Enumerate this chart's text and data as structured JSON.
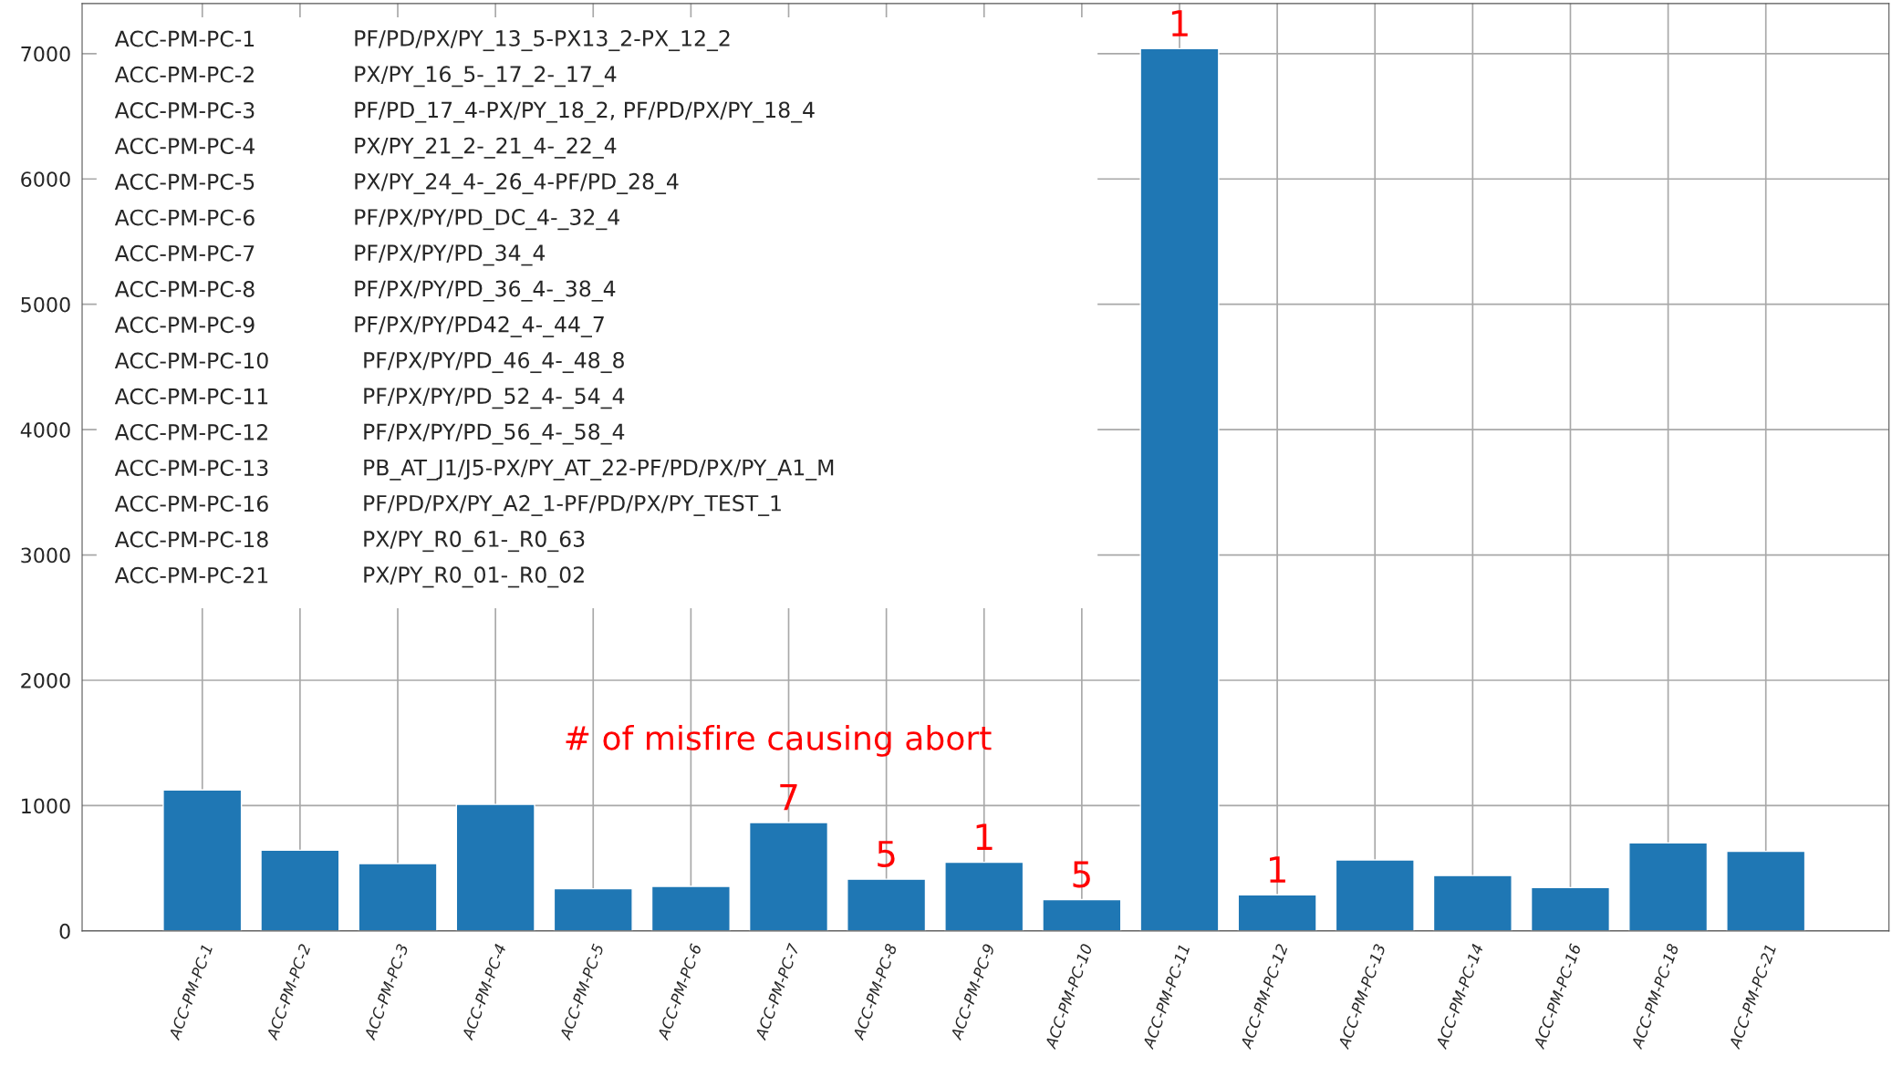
{
  "chart_data": {
    "type": "bar",
    "categories": [
      "ACC-PM-PC-1",
      "ACC-PM-PC-2",
      "ACC-PM-PC-3",
      "ACC-PM-PC-4",
      "ACC-PM-PC-5",
      "ACC-PM-PC-6",
      "ACC-PM-PC-7",
      "ACC-PM-PC-8",
      "ACC-PM-PC-9",
      "ACC-PM-PC-10",
      "ACC-PM-PC-11",
      "ACC-PM-PC-12",
      "ACC-PM-PC-13",
      "ACC-PM-PC-14",
      "ACC-PM-PC-16",
      "ACC-PM-PC-18",
      "ACC-PM-PC-21"
    ],
    "values": [
      1125,
      644,
      538,
      1010,
      337,
      356,
      865,
      413,
      548,
      250,
      7040,
      288,
      567,
      442,
      346,
      702,
      635
    ],
    "color": "#1f77b4",
    "ylim": [
      0,
      7400
    ],
    "yticks": [
      0,
      1000,
      2000,
      3000,
      4000,
      5000,
      6000,
      7000
    ],
    "grid": true,
    "annotations": [
      "ACC-PM-PC-1    PF/PD/PX/PY_13_5-PX13_2-PX_12_2",
      "ACC-PM-PC-2    PX/PY_16_5-_17_2-_17_4",
      "ACC-PM-PC-3    PF/PD_17_4-PX/PY_18_2, PF/PD/PX/PY_18_4",
      "ACC-PM-PC-4    PX/PY_21_2-_21_4-_22_4",
      "ACC-PM-PC-5    PX/PY_24_4-_26_4-PF/PD_28_4",
      "ACC-PM-PC-6    PF/PX/PY/PD_DC_4-_32_4",
      "ACC-PM-PC-7    PF/PX/PY/PD_34_4",
      "ACC-PM-PC-8    PF/PX/PY/PD_36_4-_38_4",
      "ACC-PM-PC-9    PF/PX/PY/PD42_4-_44_7",
      "ACC-PM-PC-10    PF/PX/PY/PD_46_4-_48_8",
      "ACC-PM-PC-11    PF/PX/PY/PD_52_4-_54_4",
      "ACC-PM-PC-12    PF/PX/PY/PD_56_4-_58_4",
      "ACC-PM-PC-13    PB_AT_J1/J5-PX/PY_AT_22-PF/PD/PX/PY_A1_M",
      "ACC-PM-PC-16    PF/PD/PX/PY_A2_1-PF/PD/PX/PY_TEST_1",
      "ACC-PM-PC-18    PX/PY_R0_61-_R0_63",
      "ACC-PM-PC-21    PX/PY_R0_01-_R0_02",
      "# of misfire causing abort",
      {
        "text": "7",
        "x": "ACC-PM-PC-7",
        "y": 865
      },
      {
        "text": "5",
        "x": "ACC-PM-PC-8",
        "y": 413
      },
      {
        "text": "1",
        "x": "ACC-PM-PC-9",
        "y": 548
      },
      {
        "text": "5",
        "x": "ACC-PM-PC-10",
        "y": 250
      },
      {
        "text": "1",
        "x": "ACC-PM-PC-11",
        "y": 7040
      },
      {
        "text": "1",
        "x": "ACC-PM-PC-12",
        "y": 288
      }
    ]
  }
}
